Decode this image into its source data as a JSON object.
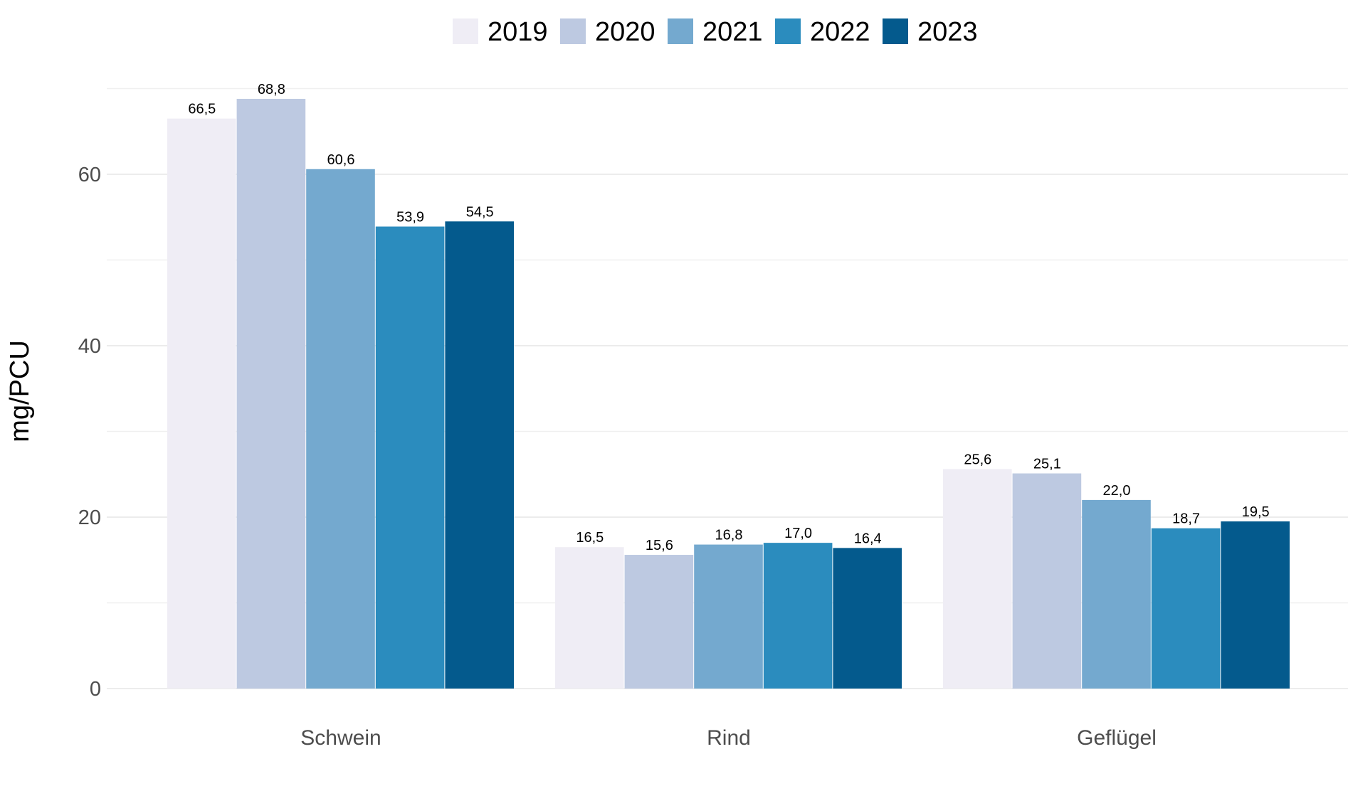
{
  "chart_data": {
    "type": "bar",
    "categories": [
      "Schwein",
      "Rind",
      "Geflügel"
    ],
    "series": [
      {
        "name": "2019",
        "color": "#efedf5",
        "values": [
          66.5,
          16.5,
          25.6
        ],
        "labels": [
          "66,5",
          "16,5",
          "25,6"
        ]
      },
      {
        "name": "2020",
        "color": "#bdc9e1",
        "values": [
          68.8,
          15.6,
          25.1
        ],
        "labels": [
          "68,8",
          "15,6",
          "25,1"
        ]
      },
      {
        "name": "2021",
        "color": "#74a9cf",
        "values": [
          60.6,
          16.8,
          22.0
        ],
        "labels": [
          "60,6",
          "16,8",
          "22,0"
        ]
      },
      {
        "name": "2022",
        "color": "#2b8cbe",
        "values": [
          53.9,
          17.0,
          18.7
        ],
        "labels": [
          "53,9",
          "17,0",
          "18,7"
        ]
      },
      {
        "name": "2023",
        "color": "#045a8d",
        "values": [
          54.5,
          16.4,
          19.5
        ],
        "labels": [
          "54,5",
          "16,4",
          "19,5"
        ]
      }
    ],
    "ylabel": "mg/PCU",
    "xlabel": "",
    "ylim": [
      0,
      70
    ],
    "yticks": [
      0,
      20,
      40,
      60
    ],
    "ytick_labels": [
      "0",
      "20",
      "40",
      "60"
    ],
    "grid": true,
    "legend_position": "top"
  }
}
